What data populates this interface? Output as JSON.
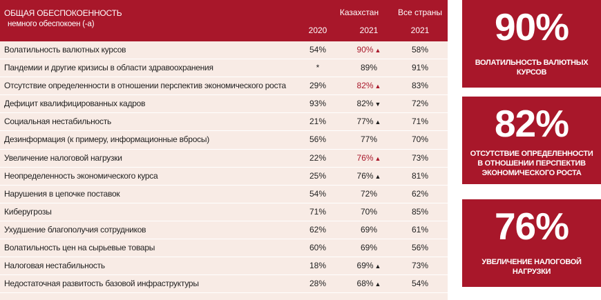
{
  "header": {
    "title": "ОБЩАЯ ОБЕСПОКОЕННОСТЬ",
    "subtitle": "немного обеспокоен (-а)",
    "group_kz": "Казахстан",
    "group_all": "Все страны",
    "year_kz_2020": "2020",
    "year_kz_2021": "2021",
    "year_all_2021": "2021"
  },
  "colors": {
    "accent": "#a8172a",
    "row_bg": "#f8ebe5"
  },
  "rows": [
    {
      "label": "Волатильность валютных курсов",
      "v2020": "54%",
      "v2021": "90%",
      "arrow": "up",
      "highlight": true,
      "all2021": "58%"
    },
    {
      "label": "Пандемии и другие кризисы в области здравоохранения",
      "v2020": "*",
      "v2021": "89%",
      "arrow": "",
      "highlight": false,
      "all2021": "91%"
    },
    {
      "label": "Отсутствие определенности в отношении перспектив экономического роста",
      "v2020": "29%",
      "v2021": "82%",
      "arrow": "up",
      "highlight": true,
      "all2021": "83%"
    },
    {
      "label": "Дефицит квалифицированных кадров",
      "v2020": "93%",
      "v2021": "82%",
      "arrow": "down",
      "highlight": false,
      "all2021": "72%"
    },
    {
      "label": "Социальная нестабильность",
      "v2020": "21%",
      "v2021": "77%",
      "arrow": "up",
      "highlight": false,
      "all2021": "71%"
    },
    {
      "label": "Дезинформация (к примеру, информационные вбросы)",
      "v2020": "56%",
      "v2021": "77%",
      "arrow": "",
      "highlight": false,
      "all2021": "70%"
    },
    {
      "label": "Увеличение налоговой нагрузки",
      "v2020": "22%",
      "v2021": "76%",
      "arrow": "up",
      "highlight": true,
      "all2021": "73%"
    },
    {
      "label": "Неопределенность экономического курса",
      "v2020": "25%",
      "v2021": "76%",
      "arrow": "up",
      "highlight": false,
      "all2021": "81%"
    },
    {
      "label": "Нарушения в цепочке поставок",
      "v2020": "54%",
      "v2021": "72%",
      "arrow": "",
      "highlight": false,
      "all2021": "62%"
    },
    {
      "label": "Киберугрозы",
      "v2020": "71%",
      "v2021": "70%",
      "arrow": "",
      "highlight": false,
      "all2021": "85%"
    },
    {
      "label": "Ухудшение благополучия сотрудников",
      "v2020": "62%",
      "v2021": "69%",
      "arrow": "",
      "highlight": false,
      "all2021": "61%"
    },
    {
      "label": "Волатильность цен на сырьевые товары",
      "v2020": "60%",
      "v2021": "69%",
      "arrow": "",
      "highlight": false,
      "all2021": "56%"
    },
    {
      "label": "Налоговая нестабильность",
      "v2020": "18%",
      "v2021": "69%",
      "arrow": "up",
      "highlight": false,
      "all2021": "73%"
    },
    {
      "label": "Недостаточная развитость базовой инфраструктуры",
      "v2020": "28%",
      "v2021": "68%",
      "arrow": "up",
      "highlight": false,
      "all2021": "54%"
    }
  ],
  "cards": [
    {
      "value": "90%",
      "lines": [
        "ВОЛАТИЛЬНОСТЬ ВАЛЮТНЫХ",
        "КУРСОВ"
      ]
    },
    {
      "value": "82%",
      "lines": [
        "ОТСУТСТВИЕ ОПРЕДЕЛЕННОСТИ",
        "В ОТНОШЕНИИ ПЕРСПЕКТИВ",
        "ЭКОНОМИЧЕСКОГО РОСТА"
      ]
    },
    {
      "value": "76%",
      "lines": [
        "УВЕЛИЧЕНИЕ НАЛОГОВОЙ",
        "НАГРУЗКИ"
      ]
    }
  ]
}
